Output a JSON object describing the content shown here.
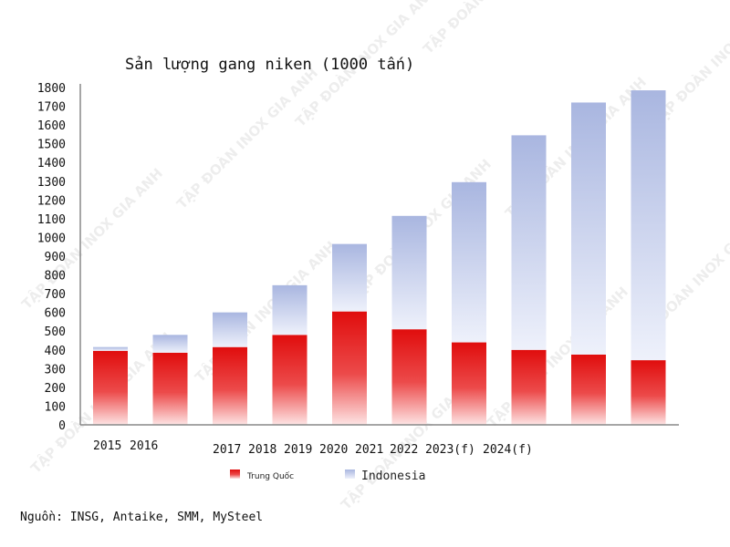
{
  "chart_data": {
    "type": "bar",
    "stacked": true,
    "title": "Sản lượng gang niken (1000 tấn)",
    "xlabel": "",
    "ylabel": "",
    "ylim": [
      0,
      1800
    ],
    "ytick_step": 100,
    "grid": false,
    "legend_position": "bottom",
    "x_tick_labels": [
      "2015",
      "2016",
      "2017",
      "2018",
      "2019",
      "2020",
      "2021",
      "2022",
      "2023(f)",
      "2024(f)"
    ],
    "series": [
      {
        "name": "Trung Quốc",
        "color": "#e31818",
        "values": [
          395,
          385,
          415,
          480,
          605,
          510,
          440,
          400,
          375,
          345
        ]
      },
      {
        "name": "Indonesia",
        "color": "#aebbe3",
        "values": [
          20,
          95,
          185,
          265,
          360,
          605,
          855,
          1145,
          1345,
          1440
        ]
      }
    ]
  },
  "source": "Nguồn: INSG, Antaike, SMM, MySteel",
  "watermark": "TẬP ĐOÀN INOX GIA ANH"
}
